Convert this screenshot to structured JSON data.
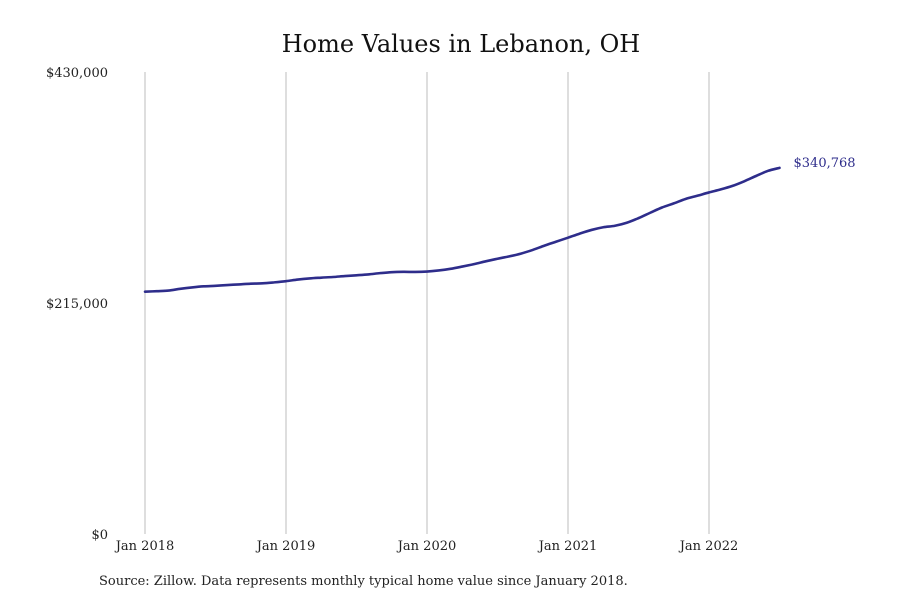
{
  "chart_data": {
    "type": "line",
    "title": "Home Values in Lebanon, OH",
    "xlabel": "",
    "ylabel": "",
    "ylim": [
      0,
      430000
    ],
    "yticks": [
      {
        "value": 0,
        "label": "$0"
      },
      {
        "value": 215000,
        "label": "$215,000"
      },
      {
        "value": 430000,
        "label": "$430,000"
      }
    ],
    "xticks": [
      {
        "value": "2018-01",
        "label": "Jan 2018"
      },
      {
        "value": "2019-01",
        "label": "Jan 2019"
      },
      {
        "value": "2020-01",
        "label": "Jan 2020"
      },
      {
        "value": "2021-01",
        "label": "Jan 2021"
      },
      {
        "value": "2022-01",
        "label": "Jan 2022"
      }
    ],
    "grid": {
      "vertical": true,
      "horizontal": false
    },
    "color": "#2e2d8b",
    "end_label": "$340,768",
    "x": [
      "2018-01",
      "2018-02",
      "2018-03",
      "2018-04",
      "2018-05",
      "2018-06",
      "2018-07",
      "2018-08",
      "2018-09",
      "2018-10",
      "2018-11",
      "2018-12",
      "2019-01",
      "2019-02",
      "2019-03",
      "2019-04",
      "2019-05",
      "2019-06",
      "2019-07",
      "2019-08",
      "2019-09",
      "2019-10",
      "2019-11",
      "2019-12",
      "2020-01",
      "2020-02",
      "2020-03",
      "2020-04",
      "2020-05",
      "2020-06",
      "2020-07",
      "2020-08",
      "2020-09",
      "2020-10",
      "2020-11",
      "2020-12",
      "2021-01",
      "2021-02",
      "2021-03",
      "2021-04",
      "2021-05",
      "2021-06",
      "2021-07",
      "2021-08",
      "2021-09",
      "2021-10",
      "2021-11",
      "2021-12",
      "2022-01",
      "2022-02",
      "2022-03",
      "2022-04",
      "2022-05",
      "2022-06",
      "2022-07"
    ],
    "series": [
      {
        "values": [
          225500,
          226000,
          226600,
          228200,
          229500,
          230500,
          231000,
          231700,
          232300,
          233000,
          233300,
          234200,
          235300,
          236800,
          237900,
          238600,
          239200,
          240100,
          240800,
          241600,
          242800,
          243700,
          244000,
          243900,
          244300,
          245300,
          246800,
          248900,
          251200,
          253800,
          256200,
          258400,
          261000,
          264400,
          268400,
          272100,
          275800,
          279600,
          283000,
          285500,
          286900,
          289700,
          294000,
          299000,
          303900,
          307700,
          311800,
          314800,
          317900,
          320700,
          324000,
          328300,
          333200,
          337900,
          340768
        ]
      }
    ]
  },
  "source_note": "Source: Zillow. Data represents monthly typical home value since January 2018."
}
